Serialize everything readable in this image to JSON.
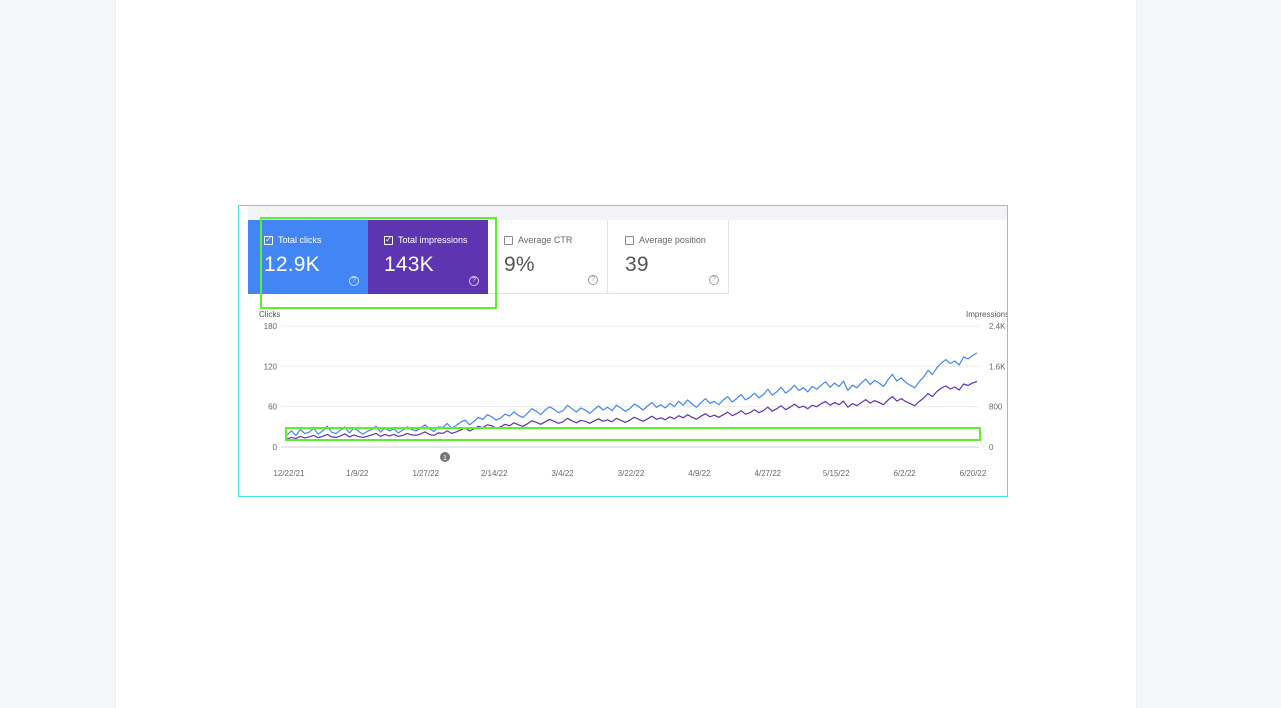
{
  "colors": {
    "clicks": "#4285f4",
    "impressions": "#5e35b1",
    "highlight": "#5cf02a",
    "frame": "#3ee6e6"
  },
  "metrics": {
    "clicks": {
      "label": "Total clicks",
      "value": "12.9K",
      "checked": true,
      "help_icon": "help-circle-icon"
    },
    "impressions": {
      "label": "Total impressions",
      "value": "143K",
      "checked": true,
      "help_icon": "help-circle-icon"
    },
    "ctr": {
      "label": "Average CTR",
      "value": "9%",
      "checked": false,
      "help_icon": "help-circle-icon"
    },
    "position": {
      "label": "Average position",
      "value": "39",
      "checked": false,
      "help_icon": "help-circle-icon"
    }
  },
  "annotation_marker": "1",
  "chart_data": {
    "type": "line",
    "y_left": {
      "title": "Clicks",
      "ticks": [
        "0",
        "60",
        "120",
        "180"
      ],
      "range": [
        0,
        180
      ]
    },
    "y_right": {
      "title": "Impressions",
      "ticks": [
        "0",
        "800",
        "1.6K",
        "2.4K"
      ],
      "range": [
        0,
        2400
      ]
    },
    "x_ticks": [
      "12/22/21",
      "1/9/22",
      "1/27/22",
      "2/14/22",
      "3/4/22",
      "3/22/22",
      "4/9/22",
      "4/27/22",
      "5/15/22",
      "6/2/22",
      "6/20/22"
    ],
    "series": [
      {
        "key": "clicks",
        "axis": "left",
        "values": [
          18,
          24,
          17,
          26,
          20,
          22,
          28,
          19,
          24,
          31,
          22,
          20,
          25,
          30,
          21,
          28,
          24,
          19,
          23,
          26,
          31,
          22,
          28,
          24,
          27,
          21,
          25,
          30,
          26,
          24,
          28,
          33,
          27,
          23,
          30,
          29,
          35,
          28,
          32,
          37,
          40,
          33,
          38,
          44,
          41,
          48,
          45,
          40,
          43,
          49,
          46,
          52,
          47,
          44,
          50,
          57,
          53,
          48,
          55,
          60,
          56,
          51,
          54,
          62,
          57,
          52,
          58,
          55,
          50,
          56,
          61,
          55,
          59,
          54,
          62,
          58,
          53,
          57,
          64,
          60,
          55,
          61,
          66,
          59,
          63,
          58,
          65,
          60,
          68,
          62,
          70,
          64,
          59,
          66,
          72,
          65,
          68,
          63,
          70,
          75,
          67,
          72,
          78,
          70,
          74,
          80,
          73,
          78,
          86,
          77,
          82,
          89,
          80,
          85,
          92,
          84,
          88,
          82,
          90,
          86,
          92,
          97,
          89,
          95,
          90,
          98,
          84,
          92,
          88,
          95,
          101,
          93,
          99,
          95,
          90,
          100,
          108,
          98,
          103,
          96,
          92,
          88,
          97,
          104,
          114,
          108,
          118,
          125,
          130,
          124,
          128,
          122,
          134,
          131,
          136,
          140
        ]
      },
      {
        "key": "impressions",
        "axis": "right",
        "values": [
          160,
          190,
          170,
          210,
          180,
          200,
          230,
          185,
          210,
          250,
          200,
          190,
          220,
          260,
          200,
          240,
          210,
          190,
          210,
          240,
          270,
          210,
          250,
          220,
          250,
          210,
          230,
          270,
          240,
          230,
          260,
          300,
          250,
          230,
          280,
          270,
          320,
          270,
          300,
          340,
          380,
          320,
          360,
          410,
          380,
          440,
          420,
          370,
          400,
          450,
          420,
          480,
          440,
          410,
          460,
          520,
          490,
          450,
          500,
          550,
          510,
          470,
          500,
          570,
          520,
          480,
          530,
          510,
          470,
          520,
          560,
          510,
          540,
          500,
          570,
          530,
          490,
          530,
          590,
          550,
          510,
          560,
          610,
          550,
          580,
          540,
          600,
          560,
          620,
          580,
          640,
          590,
          550,
          610,
          660,
          600,
          630,
          590,
          640,
          690,
          620,
          660,
          720,
          650,
          680,
          740,
          680,
          720,
          790,
          710,
          760,
          820,
          740,
          790,
          850,
          780,
          810,
          760,
          830,
          800,
          860,
          900,
          830,
          880,
          840,
          910,
          790,
          860,
          820,
          880,
          940,
          870,
          920,
          880,
          840,
          930,
          1000,
          910,
          960,
          900,
          860,
          820,
          900,
          970,
          1060,
          1000,
          1100,
          1170,
          1210,
          1150,
          1190,
          1130,
          1250,
          1220,
          1270,
          1300
        ]
      }
    ]
  }
}
